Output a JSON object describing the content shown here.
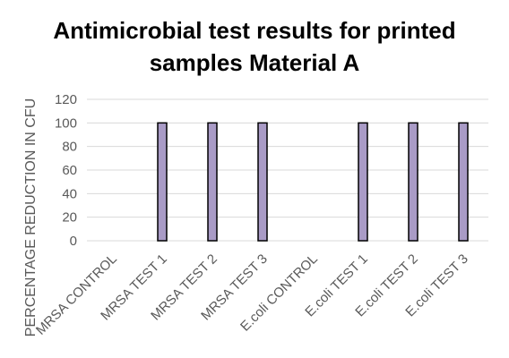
{
  "chart_data": {
    "type": "bar",
    "title_lines": [
      "Antimicrobial test results for printed",
      "samples Material A"
    ],
    "title": "Antimicrobial test results for printed samples Material A",
    "xlabel": "",
    "ylabel": "PERCENTAGE REDUCTION IN CFU",
    "ylim": [
      0,
      120
    ],
    "yticks": [
      0,
      20,
      40,
      60,
      80,
      100,
      120
    ],
    "grid": true,
    "legend": "none",
    "categories": [
      "MRSA CONTROL",
      "MRSA TEST 1",
      "MRSA TEST 2",
      "MRSA TEST 3",
      "E.coli CONTROL",
      "E.coli TEST 1",
      "E.coli TEST 2",
      "E.coli TEST 3"
    ],
    "values": [
      0,
      100,
      100,
      100,
      0,
      100,
      100,
      100
    ],
    "colors": {
      "bar_fill": "#a99bc6",
      "bar_stroke": "#000000",
      "grid": "#d9d9d9",
      "tick_text": "#595959"
    }
  }
}
